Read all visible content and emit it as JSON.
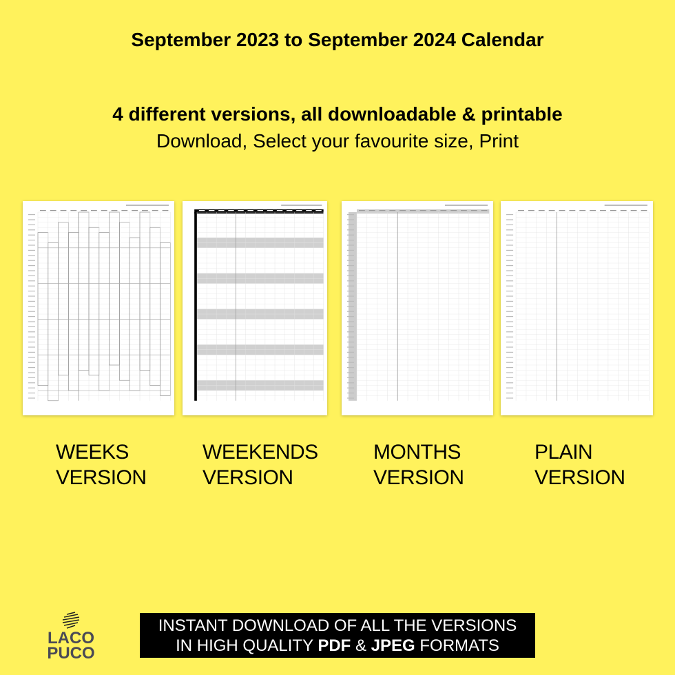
{
  "header": {
    "title": "September 2023 to September 2024 Calendar",
    "subtitle": "4 different versions, all downloadable & printable",
    "tagline": "Download, Select your favourite size, Print"
  },
  "thumbnails": [
    {
      "id": "weeks",
      "label1": "WEEKS",
      "label2": "VERSION"
    },
    {
      "id": "weekends",
      "label1": "WEEKENDS",
      "label2": "VERSION"
    },
    {
      "id": "months",
      "label1": "MONTHS",
      "label2": "VERSION"
    },
    {
      "id": "plain",
      "label1": "PLAIN",
      "label2": "VERSION"
    }
  ],
  "banner": {
    "line1": "INSTANT DOWNLOAD OF ALL THE VERSIONS",
    "line2_pre": "IN HIGH QUALITY ",
    "pdf": "PDF",
    "amp": " & ",
    "jpeg": "JPEG",
    "line2_post": " FORMATS"
  },
  "logo": {
    "line1": "LACO",
    "line2": "PUCO"
  },
  "colors": {
    "background": "#fff25c",
    "banner": "#000000",
    "logo": "#4a4a55",
    "weekend_shade": "#d0d0d0"
  }
}
